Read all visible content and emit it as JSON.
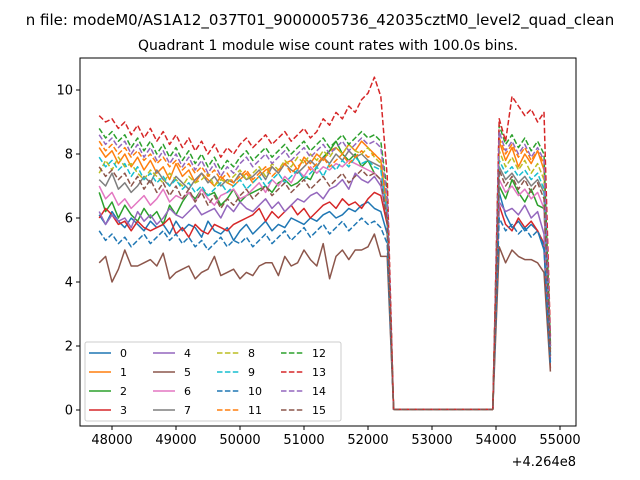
{
  "chart_data": {
    "type": "line",
    "suptitle": "n file: modeM0/AS1A12_037T01_9000005736_42035cztM0_level2_quad_clean",
    "title": "Quadrant 1 module wise count rates with 100.0s bins.",
    "xlabel": "",
    "ylabel": "",
    "x_offset_label": "+4.264e8",
    "xlim": [
      47500,
      55250
    ],
    "ylim": [
      -0.5,
      11.0
    ],
    "x_ticks": [
      48000,
      49000,
      50000,
      51000,
      52000,
      53000,
      54000,
      55000
    ],
    "x_tick_labels": [
      "48000",
      "49000",
      "50000",
      "51000",
      "52000",
      "53000",
      "54000",
      "55000"
    ],
    "y_ticks": [
      0,
      2,
      4,
      6,
      8,
      10
    ],
    "y_tick_labels": [
      "0",
      "2",
      "4",
      "6",
      "8",
      "10"
    ],
    "grid": false,
    "legend_position": "lower-left",
    "legend_columns": 4,
    "x": [
      47800,
      47900,
      48000,
      48100,
      48200,
      48300,
      48400,
      48500,
      48600,
      48700,
      48800,
      48900,
      49000,
      49100,
      49200,
      49300,
      49400,
      49500,
      49600,
      49700,
      49800,
      49900,
      50000,
      50100,
      50200,
      50300,
      50400,
      50500,
      50600,
      50700,
      50800,
      50900,
      51000,
      51100,
      51200,
      51300,
      51400,
      51500,
      51600,
      51700,
      51800,
      51900,
      52000,
      52100,
      52200,
      52300,
      52400,
      52500,
      53950,
      54050,
      54150,
      54250,
      54350,
      54450,
      54550,
      54650,
      54750,
      54850
    ],
    "series": [
      {
        "name": "0",
        "color": "#1f77b4",
        "dash": "solid",
        "values": [
          6.1,
          5.8,
          6.2,
          5.9,
          5.7,
          6.0,
          5.8,
          5.6,
          5.9,
          5.7,
          5.8,
          5.5,
          5.9,
          5.6,
          5.8,
          5.7,
          5.4,
          5.9,
          5.6,
          5.5,
          5.7,
          5.3,
          5.6,
          5.8,
          5.5,
          5.7,
          5.9,
          5.6,
          5.8,
          5.7,
          6.0,
          5.9,
          5.8,
          6.0,
          5.9,
          6.1,
          6.2,
          6.0,
          6.1,
          6.3,
          6.2,
          6.4,
          6.5,
          6.3,
          6.2,
          5.5,
          0.02,
          0.02,
          0.02,
          6.8,
          6.1,
          5.7,
          5.9,
          5.6,
          5.8,
          5.6,
          5.0,
          1.5
        ]
      },
      {
        "name": "1",
        "color": "#ff7f0e",
        "dash": "solid",
        "values": [
          8.2,
          7.9,
          8.1,
          7.7,
          8.0,
          7.6,
          7.9,
          7.5,
          7.8,
          7.4,
          7.6,
          7.2,
          7.7,
          7.3,
          7.5,
          7.1,
          7.4,
          7.2,
          7.0,
          7.3,
          7.1,
          7.0,
          7.2,
          7.4,
          7.1,
          7.3,
          7.5,
          7.6,
          7.4,
          7.7,
          7.8,
          7.5,
          7.9,
          7.7,
          8.0,
          7.8,
          8.1,
          8.2,
          8.0,
          8.3,
          8.1,
          8.4,
          8.2,
          8.0,
          7.8,
          6.2,
          0.02,
          0.02,
          0.02,
          8.4,
          7.8,
          8.2,
          7.6,
          8.0,
          7.7,
          8.1,
          7.5,
          2.0
        ]
      },
      {
        "name": "2",
        "color": "#2ca02c",
        "dash": "solid",
        "values": [
          6.8,
          6.2,
          6.5,
          6.0,
          6.4,
          6.1,
          5.9,
          6.3,
          6.0,
          6.2,
          5.8,
          6.4,
          6.1,
          6.5,
          6.8,
          6.6,
          6.9,
          6.7,
          6.8,
          6.4,
          6.6,
          6.9,
          6.5,
          6.7,
          6.8,
          6.9,
          7.0,
          6.8,
          7.1,
          7.2,
          7.0,
          7.1,
          7.3,
          7.2,
          7.6,
          7.9,
          8.1,
          8.4,
          8.0,
          7.8,
          8.0,
          7.6,
          7.8,
          7.4,
          7.2,
          5.8,
          0.02,
          0.02,
          0.02,
          7.0,
          6.6,
          7.2,
          6.8,
          6.5,
          6.9,
          6.4,
          6.3,
          1.7
        ]
      },
      {
        "name": "3",
        "color": "#d62728",
        "dash": "solid",
        "values": [
          6.0,
          6.3,
          6.1,
          5.8,
          5.9,
          5.6,
          5.9,
          5.7,
          5.6,
          5.7,
          5.8,
          6.0,
          5.5,
          5.7,
          5.4,
          5.8,
          5.6,
          5.5,
          5.8,
          5.7,
          5.6,
          5.8,
          5.9,
          6.0,
          6.1,
          6.3,
          5.9,
          6.2,
          6.0,
          6.2,
          6.4,
          6.1,
          6.3,
          6.0,
          6.2,
          6.4,
          6.5,
          6.3,
          6.6,
          6.4,
          6.5,
          6.3,
          6.6,
          6.8,
          6.7,
          5.8,
          0.02,
          0.02,
          0.02,
          6.4,
          5.8,
          5.6,
          6.0,
          5.7,
          5.9,
          5.6,
          5.2,
          1.3
        ]
      },
      {
        "name": "4",
        "color": "#9467bd",
        "dash": "solid",
        "values": [
          6.2,
          5.8,
          6.1,
          5.9,
          6.0,
          5.7,
          6.2,
          5.9,
          6.1,
          5.8,
          6.0,
          6.3,
          6.1,
          6.0,
          6.2,
          6.4,
          6.1,
          6.2,
          6.3,
          6.0,
          6.4,
          6.2,
          6.5,
          6.3,
          6.2,
          6.4,
          6.6,
          6.3,
          6.5,
          6.2,
          6.4,
          6.6,
          6.5,
          6.7,
          6.8,
          6.6,
          6.9,
          7.0,
          7.2,
          6.9,
          7.4,
          7.2,
          7.1,
          7.3,
          7.0,
          6.0,
          0.02,
          0.02,
          0.02,
          6.5,
          6.2,
          6.3,
          6.1,
          6.4,
          6.0,
          6.2,
          5.5,
          1.6
        ]
      },
      {
        "name": "5",
        "color": "#8c564b",
        "dash": "solid",
        "values": [
          4.6,
          4.8,
          4.0,
          4.4,
          5.0,
          4.5,
          4.5,
          4.6,
          4.7,
          4.5,
          4.9,
          4.1,
          4.3,
          4.4,
          4.5,
          4.1,
          4.3,
          4.4,
          4.8,
          4.2,
          4.3,
          4.4,
          4.1,
          4.3,
          4.2,
          4.5,
          4.6,
          4.6,
          4.2,
          4.8,
          4.5,
          4.6,
          5.0,
          4.7,
          4.5,
          5.2,
          4.1,
          4.8,
          5.0,
          4.7,
          5.0,
          5.0,
          5.1,
          5.5,
          4.8,
          4.8,
          0.02,
          0.02,
          0.02,
          5.1,
          4.6,
          5.0,
          4.8,
          4.7,
          4.7,
          4.6,
          4.3,
          1.2
        ]
      },
      {
        "name": "6",
        "color": "#e377c2",
        "dash": "solid",
        "values": [
          7.0,
          6.6,
          6.8,
          6.4,
          6.6,
          6.3,
          6.5,
          6.7,
          6.4,
          6.6,
          6.9,
          6.5,
          6.7,
          6.6,
          6.8,
          6.5,
          6.9,
          6.6,
          6.4,
          6.7,
          6.8,
          6.9,
          6.6,
          6.7,
          6.9,
          7.1,
          6.8,
          7.2,
          7.0,
          7.3,
          7.1,
          7.5,
          7.3,
          7.6,
          7.4,
          7.6,
          7.5,
          7.7,
          7.6,
          7.8,
          7.7,
          7.6,
          7.5,
          7.4,
          7.2,
          6.0,
          0.02,
          0.02,
          0.02,
          7.2,
          6.8,
          7.0,
          6.7,
          6.9,
          6.6,
          6.8,
          6.3,
          1.8
        ]
      },
      {
        "name": "7",
        "color": "#7f7f7f",
        "dash": "solid",
        "values": [
          7.2,
          7.0,
          7.4,
          6.9,
          7.1,
          6.8,
          7.0,
          7.3,
          7.1,
          7.5,
          7.2,
          7.0,
          7.3,
          7.1,
          6.9,
          7.2,
          7.4,
          7.1,
          7.3,
          7.0,
          7.2,
          7.1,
          7.4,
          7.2,
          7.3,
          7.5,
          7.2,
          7.6,
          7.4,
          7.7,
          7.5,
          7.4,
          7.6,
          7.8,
          7.6,
          7.9,
          7.7,
          8.0,
          7.8,
          8.1,
          7.9,
          8.0,
          7.8,
          7.7,
          7.6,
          6.2,
          0.02,
          0.02,
          0.02,
          7.6,
          7.2,
          7.4,
          7.1,
          7.3,
          7.0,
          7.2,
          6.8,
          1.9
        ]
      },
      {
        "name": "8",
        "color": "#bcbd22",
        "dash": "dashed",
        "values": [
          7.4,
          7.8,
          7.5,
          7.9,
          7.6,
          7.7,
          7.4,
          7.2,
          7.5,
          7.3,
          7.1,
          7.4,
          7.2,
          7.0,
          7.3,
          7.1,
          7.2,
          7.4,
          7.0,
          7.2,
          7.1,
          7.3,
          7.5,
          7.2,
          7.4,
          7.6,
          7.3,
          7.7,
          7.5,
          7.8,
          7.6,
          7.9,
          7.7,
          8.0,
          7.8,
          8.1,
          7.9,
          8.2,
          8.0,
          8.3,
          8.1,
          8.0,
          8.2,
          7.9,
          7.7,
          6.3,
          0.02,
          0.02,
          0.02,
          8.1,
          7.6,
          7.9,
          7.5,
          7.8,
          7.4,
          7.7,
          7.2,
          1.9
        ]
      },
      {
        "name": "9",
        "color": "#17becf",
        "dash": "dashed",
        "values": [
          7.9,
          7.6,
          7.8,
          7.5,
          7.7,
          7.3,
          7.6,
          7.2,
          7.4,
          7.1,
          7.3,
          7.0,
          7.2,
          6.9,
          7.1,
          6.8,
          7.0,
          6.7,
          6.9,
          7.1,
          6.8,
          7.0,
          7.2,
          6.9,
          7.1,
          7.3,
          7.0,
          7.2,
          7.4,
          7.1,
          7.3,
          7.5,
          7.2,
          7.4,
          7.6,
          7.3,
          7.7,
          7.5,
          7.8,
          7.6,
          7.9,
          7.7,
          7.8,
          7.6,
          7.5,
          6.1,
          0.02,
          0.02,
          0.02,
          7.8,
          7.4,
          7.6,
          7.3,
          7.5,
          7.2,
          7.4,
          6.9,
          1.8
        ]
      },
      {
        "name": "10",
        "color": "#1f77b4",
        "dash": "dashed",
        "values": [
          5.6,
          5.3,
          5.5,
          5.2,
          5.4,
          5.1,
          5.3,
          5.5,
          5.2,
          5.4,
          5.6,
          5.3,
          5.5,
          5.2,
          5.4,
          5.1,
          5.3,
          5.0,
          5.2,
          5.4,
          5.1,
          5.3,
          5.2,
          5.4,
          5.1,
          5.3,
          5.5,
          5.2,
          5.4,
          5.6,
          5.3,
          5.5,
          5.7,
          5.4,
          5.6,
          5.8,
          5.5,
          5.7,
          5.9,
          5.6,
          5.8,
          6.0,
          5.8,
          5.9,
          5.7,
          5.2,
          0.02,
          0.02,
          0.02,
          6.0,
          5.6,
          5.8,
          5.5,
          5.7,
          5.4,
          5.6,
          5.1,
          1.4
        ]
      },
      {
        "name": "11",
        "color": "#ff7f0e",
        "dash": "dashed",
        "values": [
          8.4,
          8.1,
          8.3,
          8.0,
          8.2,
          7.9,
          8.1,
          7.8,
          8.0,
          7.7,
          7.9,
          7.6,
          7.8,
          7.5,
          7.7,
          7.4,
          7.6,
          7.3,
          7.5,
          7.2,
          7.4,
          7.1,
          7.3,
          7.5,
          7.2,
          7.4,
          7.6,
          7.3,
          7.5,
          7.7,
          7.4,
          7.6,
          7.8,
          7.5,
          7.7,
          7.9,
          7.6,
          7.8,
          8.0,
          7.7,
          7.9,
          8.1,
          7.9,
          8.0,
          7.8,
          6.4,
          0.02,
          0.02,
          0.02,
          8.5,
          8.0,
          8.3,
          7.9,
          8.2,
          7.8,
          8.1,
          7.7,
          2.0
        ]
      },
      {
        "name": "12",
        "color": "#2ca02c",
        "dash": "dashed",
        "values": [
          8.8,
          8.5,
          8.7,
          8.4,
          8.6,
          8.2,
          8.5,
          8.1,
          8.4,
          8.0,
          8.3,
          7.9,
          8.2,
          7.8,
          8.1,
          7.7,
          8.0,
          7.6,
          7.9,
          7.5,
          7.8,
          7.6,
          7.9,
          8.1,
          7.8,
          8.0,
          8.2,
          7.9,
          8.1,
          8.3,
          8.0,
          8.2,
          8.4,
          8.1,
          8.3,
          8.5,
          8.2,
          8.4,
          8.6,
          8.3,
          8.5,
          8.7,
          8.5,
          8.6,
          8.4,
          6.8,
          0.02,
          0.02,
          0.02,
          8.9,
          8.3,
          8.6,
          8.2,
          8.5,
          8.1,
          8.4,
          8.0,
          2.1
        ]
      },
      {
        "name": "13",
        "color": "#d62728",
        "dash": "dashed",
        "values": [
          9.2,
          9.0,
          9.1,
          8.8,
          9.0,
          8.6,
          8.9,
          8.5,
          8.8,
          8.4,
          8.7,
          8.3,
          8.6,
          8.2,
          8.5,
          8.1,
          8.4,
          8.0,
          8.3,
          7.9,
          8.2,
          8.0,
          8.3,
          8.5,
          8.2,
          8.4,
          8.6,
          8.3,
          8.5,
          8.7,
          8.4,
          8.6,
          8.8,
          8.5,
          8.7,
          9.1,
          8.9,
          9.3,
          9.1,
          9.5,
          9.3,
          9.7,
          9.9,
          10.4,
          9.8,
          7.3,
          0.02,
          0.02,
          0.02,
          9.1,
          8.4,
          9.8,
          9.5,
          9.2,
          9.4,
          9.0,
          9.3,
          2.3
        ]
      },
      {
        "name": "14",
        "color": "#9467bd",
        "dash": "dashed",
        "values": [
          8.6,
          8.3,
          8.5,
          8.2,
          8.4,
          8.0,
          8.3,
          7.9,
          8.2,
          7.8,
          8.1,
          7.7,
          8.0,
          7.6,
          7.9,
          7.5,
          7.8,
          7.4,
          7.7,
          7.3,
          7.6,
          7.4,
          7.7,
          7.9,
          7.6,
          7.8,
          8.0,
          7.7,
          7.9,
          8.1,
          7.8,
          8.0,
          8.2,
          7.9,
          8.1,
          8.3,
          8.0,
          8.2,
          8.4,
          8.1,
          8.3,
          8.5,
          8.3,
          8.4,
          8.2,
          6.6,
          0.02,
          0.02,
          0.02,
          8.7,
          8.1,
          8.4,
          8.0,
          8.3,
          7.9,
          8.2,
          7.8,
          2.0
        ]
      },
      {
        "name": "15",
        "color": "#8c564b",
        "dash": "dashed",
        "values": [
          7.6,
          7.3,
          7.5,
          7.2,
          7.4,
          7.0,
          7.3,
          6.9,
          7.2,
          6.8,
          7.1,
          6.7,
          7.0,
          6.6,
          6.9,
          6.5,
          6.8,
          6.4,
          6.7,
          6.3,
          6.6,
          6.4,
          6.7,
          6.9,
          6.6,
          6.8,
          7.0,
          6.7,
          6.9,
          7.1,
          6.8,
          7.0,
          7.2,
          6.9,
          7.1,
          7.3,
          7.0,
          7.2,
          7.4,
          7.1,
          7.3,
          7.5,
          7.3,
          7.4,
          7.2,
          5.9,
          0.02,
          0.02,
          0.02,
          7.5,
          7.0,
          7.3,
          6.9,
          7.2,
          6.8,
          7.1,
          6.6,
          1.7
        ]
      }
    ]
  }
}
